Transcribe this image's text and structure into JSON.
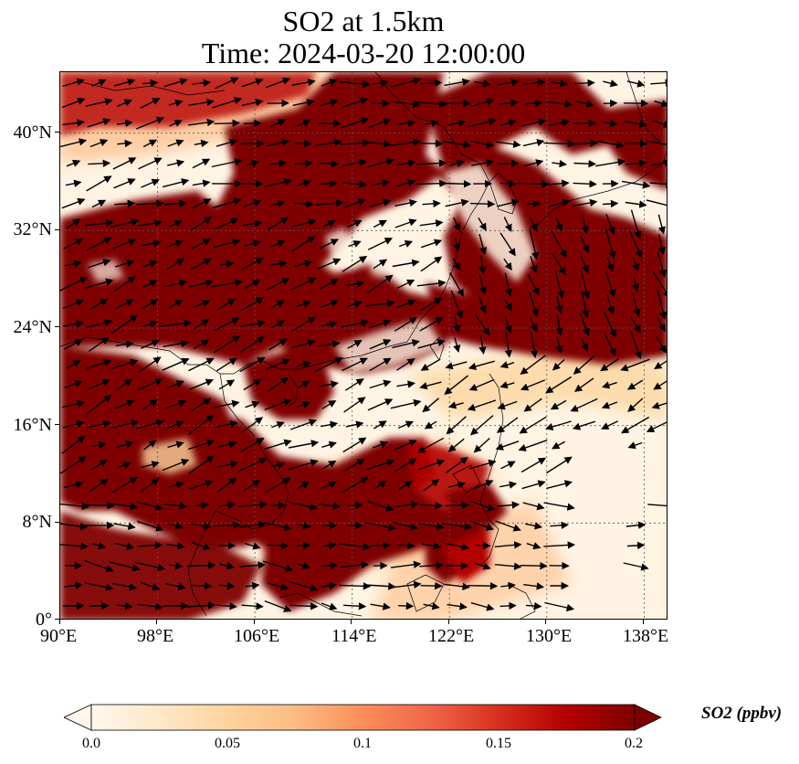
{
  "title": {
    "line1": "SO2 at 1.5km",
    "line2": "Time: 2024-03-20 12:00:00"
  },
  "map": {
    "lon_range": [
      90,
      140
    ],
    "lat_range": [
      0,
      45
    ],
    "x_ticks": [
      "90°E",
      "98°E",
      "106°E",
      "114°E",
      "122°E",
      "130°E",
      "138°E"
    ],
    "y_ticks": [
      "0°",
      "8°N",
      "16°N",
      "24°N",
      "32°N",
      "40°N"
    ],
    "gridlines": true,
    "coastlines": true,
    "wind_vectors": true,
    "field": "SO2 concentration (filled contours)"
  },
  "colorbar": {
    "label": "SO2 (ppbv)",
    "ticks": [
      "0.0",
      "0.05",
      "0.1",
      "0.15",
      "0.2"
    ],
    "range": [
      0,
      0.2
    ],
    "extend": "both",
    "colormap": "OrRd",
    "colors": [
      "#fff7ec",
      "#fee8c8",
      "#fdd49e",
      "#fdbb84",
      "#fc8d59",
      "#ef6548",
      "#d7301f",
      "#b30000",
      "#7f0000"
    ]
  }
}
